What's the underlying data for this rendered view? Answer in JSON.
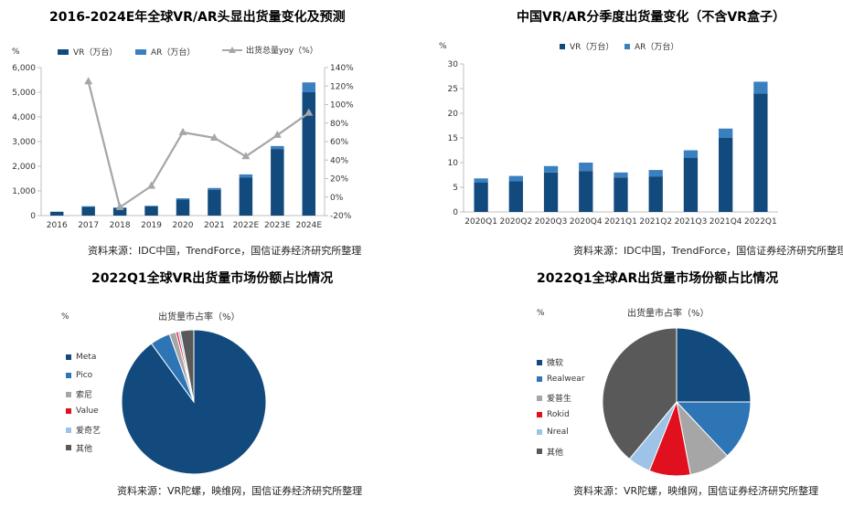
{
  "colors": {
    "vr": "#124a7d",
    "ar": "#3a80c0",
    "line": "#a6a6a6",
    "axis": "#bfbfbf"
  },
  "chart_data": [
    {
      "type": "bar",
      "title": "2016-2024E年全球VR/AR头显出货量变化及预测",
      "unit_label": "%",
      "categories": [
        "2016",
        "2017",
        "2018",
        "2019",
        "2020",
        "2021",
        "2022E",
        "2023E",
        "2024E"
      ],
      "series": [
        {
          "name": "VR（万台）",
          "values": [
            150,
            350,
            300,
            380,
            650,
            1050,
            1550,
            2700,
            5000
          ],
          "color": "#124a7d"
        },
        {
          "name": "AR（万台）",
          "values": [
            10,
            30,
            30,
            20,
            50,
            70,
            120,
            120,
            400
          ],
          "color": "#3a80c0"
        },
        {
          "name": "出货总量yoy（%）",
          "type": "line",
          "axis": "right",
          "values": [
            null,
            125,
            -11,
            12,
            70,
            64,
            44,
            67,
            91
          ],
          "color": "#a6a6a6"
        }
      ],
      "ylim": [
        0,
        6000
      ],
      "yticks": [
        "0",
        "1,000",
        "2,000",
        "3,000",
        "4,000",
        "5,000",
        "6,000"
      ],
      "y2lim": [
        -20,
        140
      ],
      "y2ticks": [
        "-20%",
        "0%",
        "20%",
        "40%",
        "60%",
        "80%",
        "100%",
        "120%",
        "140%"
      ],
      "grid": false,
      "legend": "top",
      "source": "资料来源：IDC中国，TrendForce，国信证券经济研究所整理"
    },
    {
      "type": "bar",
      "title": "中国VR/AR分季度出货量变化（不含VR盒子）",
      "unit_label": "%",
      "categories": [
        "2020Q1",
        "2020Q2",
        "2020Q3",
        "2020Q4",
        "2021Q1",
        "2021Q2",
        "2021Q3",
        "2021Q4",
        "2022Q1"
      ],
      "series": [
        {
          "name": "VR（万台）",
          "values": [
            6,
            6.2,
            8,
            8.3,
            7,
            7.2,
            11,
            15,
            24
          ],
          "color": "#124a7d"
        },
        {
          "name": "AR（万台）",
          "values": [
            0.8,
            1.1,
            1.3,
            1.7,
            1.0,
            1.3,
            1.5,
            1.9,
            2.4
          ],
          "color": "#3a80c0"
        }
      ],
      "ylim": [
        0,
        30
      ],
      "yticks": [
        "0",
        "5",
        "10",
        "15",
        "20",
        "25",
        "30"
      ],
      "grid": false,
      "legend": "top",
      "source": "资料来源：IDC中国，TrendForce，国信证券经济研究所整理"
    },
    {
      "type": "pie",
      "title": "2022Q1全球VR出货量市场份额占比情况",
      "unit_label": "%",
      "subtitle": "出货量市占率（%）",
      "labels": [
        "Meta",
        "Pico",
        "索尼",
        "Value",
        "爱奇艺",
        "其他"
      ],
      "values": [
        90,
        4.5,
        1.5,
        0.5,
        0.5,
        3.0
      ],
      "colors": [
        "#124a7d",
        "#2e75b6",
        "#a6a6a6",
        "#e0101f",
        "#9dc3e6",
        "#595959"
      ],
      "legend": "left",
      "source": "资料来源：VR陀螺，映维网，国信证券经济研究所整理"
    },
    {
      "type": "pie",
      "title": "2022Q1全球AR出货量市场份额占比情况",
      "unit_label": "%",
      "subtitle": "出货量市占率（%）",
      "labels": [
        "微软",
        "Realwear",
        "爱普生",
        "Rokid",
        "Nreal",
        "其他"
      ],
      "values": [
        25,
        13,
        9,
        9,
        5,
        39
      ],
      "colors": [
        "#124a7d",
        "#2e75b6",
        "#a6a6a6",
        "#e0101f",
        "#9dc3e6",
        "#595959"
      ],
      "legend": "left",
      "source": "资料来源：VR陀螺，映维网，国信证券经济研究所整理"
    }
  ]
}
